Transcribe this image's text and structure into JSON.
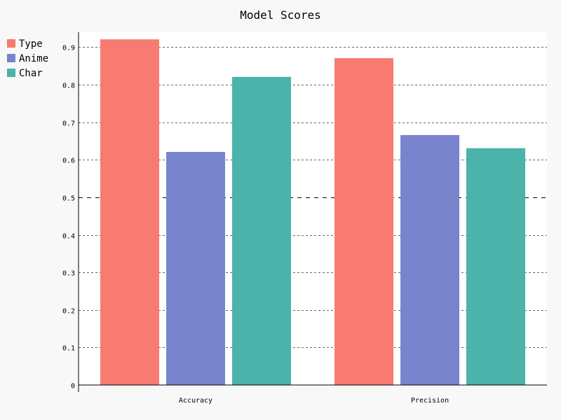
{
  "chart_data": {
    "type": "bar",
    "title": "Model Scores",
    "xlabel": "",
    "ylabel": "",
    "categories": [
      "Accuracy",
      "Precision"
    ],
    "series": [
      {
        "name": "Type",
        "values": [
          0.92,
          0.87
        ],
        "color": "#f77b70"
      },
      {
        "name": "Anime",
        "values": [
          0.62,
          0.665
        ],
        "color": "#7884cc"
      },
      {
        "name": "Char",
        "values": [
          0.82,
          0.63
        ],
        "color": "#4bb3aa"
      }
    ],
    "ylim": [
      0,
      0.94
    ],
    "yticks": [
      0,
      0.1,
      0.2,
      0.3,
      0.4,
      0.5,
      0.6,
      0.7,
      0.8,
      0.9
    ],
    "ytick_labels": [
      "0",
      "0.1",
      "0.2",
      "0.3",
      "0.4",
      "0.5",
      "0.6",
      "0.7",
      "0.8",
      "0.9"
    ],
    "highlight_tick": 0.5,
    "grid": true,
    "legend_position": "top-left"
  }
}
